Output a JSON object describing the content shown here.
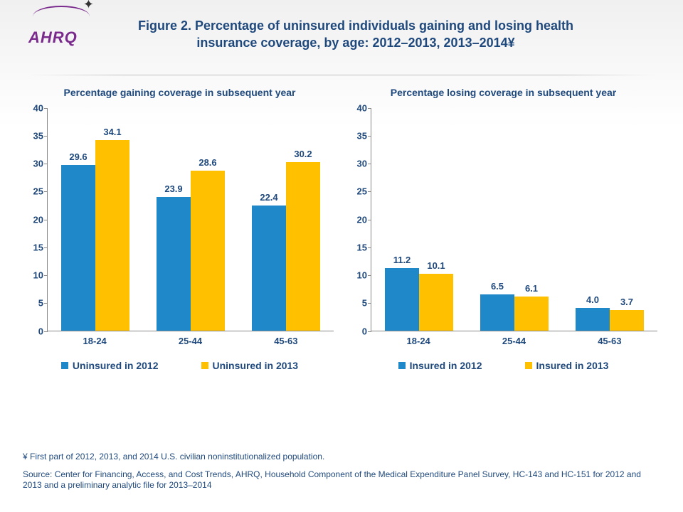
{
  "logo": {
    "text": "AHRQ"
  },
  "title": "Figure 2. Percentage of uninsured individuals gaining and losing health insurance coverage, by age: 2012–2013, 2013–2014¥",
  "colors": {
    "series1": "#1f88c8",
    "series2": "#ffc000",
    "text": "#1f497d",
    "axis": "#888888"
  },
  "axis": {
    "ymin": 0,
    "ymax": 40,
    "ystep": 5,
    "ticks": [
      0,
      5,
      10,
      15,
      20,
      25,
      30,
      35,
      40
    ]
  },
  "panels": [
    {
      "title": "Percentage gaining coverage in subsequent year",
      "categories": [
        "18-24",
        "25-44",
        "45-63"
      ],
      "series": [
        {
          "name": "Uninsured in 2012",
          "color_key": "series1",
          "values": [
            29.6,
            23.9,
            22.4
          ]
        },
        {
          "name": "Uninsured in 2013",
          "color_key": "series2",
          "values": [
            34.1,
            28.6,
            30.2
          ]
        }
      ]
    },
    {
      "title": "Percentage losing coverage in subsequent year",
      "categories": [
        "18-24",
        "25-44",
        "45-63"
      ],
      "series": [
        {
          "name": "Insured in 2012",
          "color_key": "series1",
          "values": [
            11.2,
            6.5,
            4.0
          ]
        },
        {
          "name": "Insured in 2013",
          "color_key": "series2",
          "values": [
            10.1,
            6.1,
            3.7
          ]
        }
      ]
    }
  ],
  "footnote": "¥ First part of 2012, 2013, and 2014 U.S. civilian noninstitutionalized population.",
  "source": "Source: Center for Financing, Access, and Cost Trends, AHRQ, Household Component of the Medical Expenditure Panel Survey, HC-143 and HC-151 for 2012 and 2013 and a preliminary analytic file for 2013–2014"
}
